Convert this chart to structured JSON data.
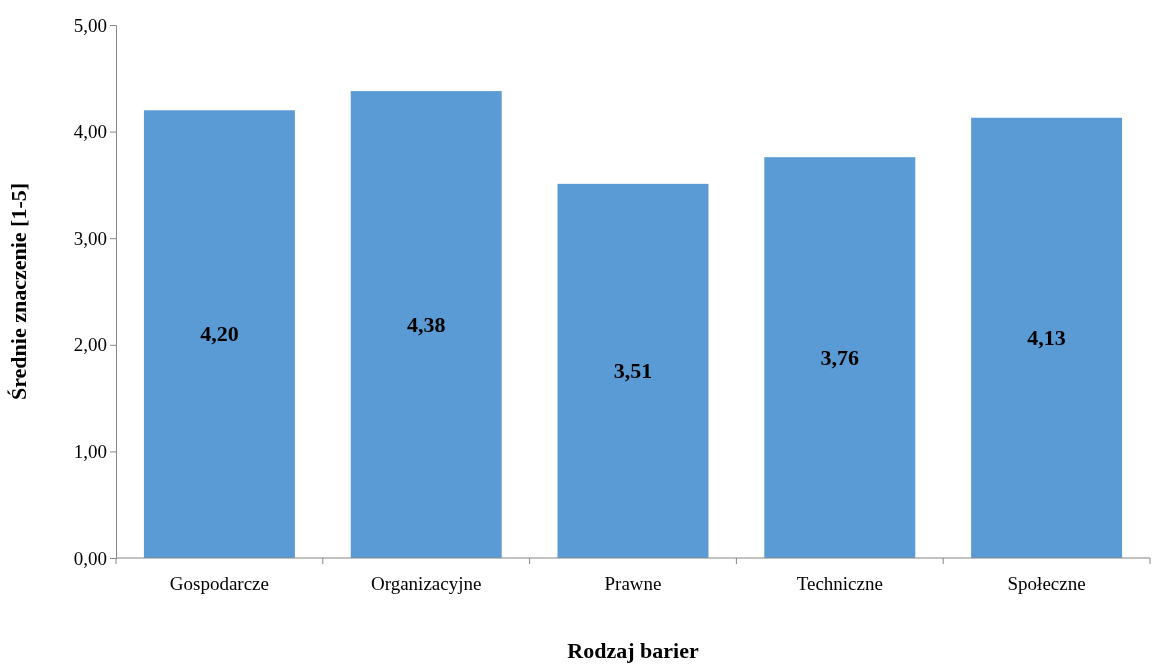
{
  "chart_data": {
    "type": "bar",
    "xlabel": "Rodzaj barier",
    "ylabel": "Średnie znaczenie [1-5]",
    "categories": [
      "Gospodarcze",
      "Organizacyjne",
      "Prawne",
      "Techniczne",
      "Społeczne"
    ],
    "values": [
      4.2,
      4.38,
      3.51,
      3.76,
      4.13
    ],
    "value_labels": [
      "4,20",
      "4,38",
      "3,51",
      "3,76",
      "4,13"
    ],
    "color": "#5b9bd5",
    "ylim": [
      0,
      5
    ],
    "yticks": [
      {
        "value": 0,
        "label": "0,00"
      },
      {
        "value": 1,
        "label": "1,00"
      },
      {
        "value": 2,
        "label": "2,00"
      },
      {
        "value": 3,
        "label": "3,00"
      },
      {
        "value": 4,
        "label": "4,00"
      },
      {
        "value": 5,
        "label": "5,00"
      }
    ],
    "grid": false
  }
}
